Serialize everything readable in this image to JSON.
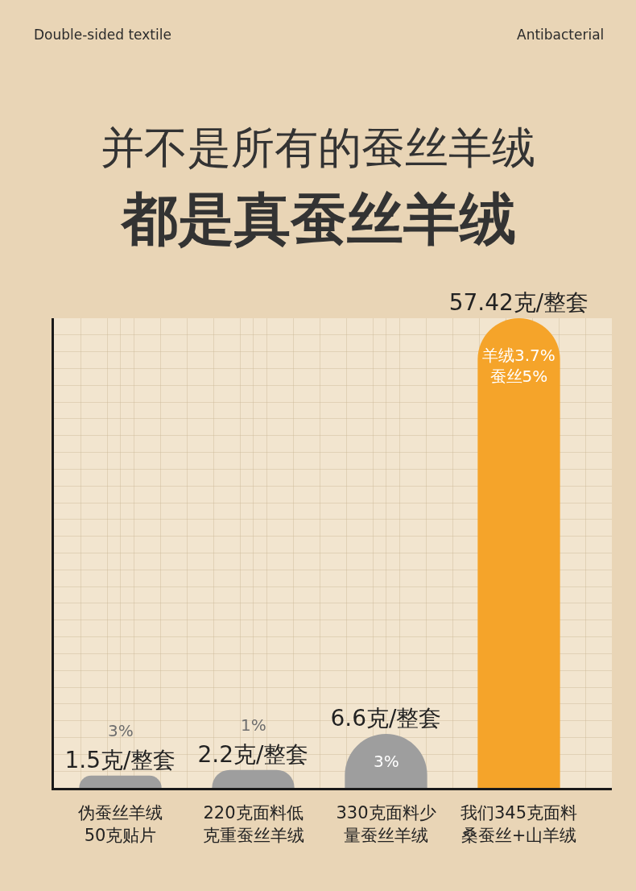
{
  "chart_data": {
    "type": "bar",
    "title": "并不是所有的蚕丝羊绒",
    "subtitle": "都是真蚕丝羊绒",
    "categories": [
      "伪蚕丝羊绒50克贴片",
      "220克面料低克重蚕丝羊绒",
      "330克面料少量蚕丝羊绒",
      "我们345克面料桑蚕丝+山羊绒"
    ],
    "values": [
      1.5,
      2.2,
      6.6,
      57.42
    ],
    "colors": [
      "#9e9e9e",
      "#9e9e9e",
      "#9e9e9e",
      "#f5a42a"
    ],
    "value_labels": [
      "1.5克/整套",
      "2.2克/整套",
      "6.6克/整套",
      "57.42克/整套"
    ],
    "annotations": [
      "Double-sided textile",
      "Antibacterial",
      {
        "text": "3%",
        "x": "伪蚕丝羊绒50克贴片",
        "y": 1.5
      },
      {
        "text": "1%",
        "x": "220克面料低克重蚕丝羊绒",
        "y": 2.2
      },
      {
        "text": "3%",
        "x": "330克面料少量蚕丝羊绒",
        "y": 6.6
      },
      {
        "text": "羊绒3.7%\n蚕丝5%",
        "x": "我们345克面料桑蚕丝+山羊绒",
        "y": 57.42
      }
    ],
    "grid": true
  }
}
